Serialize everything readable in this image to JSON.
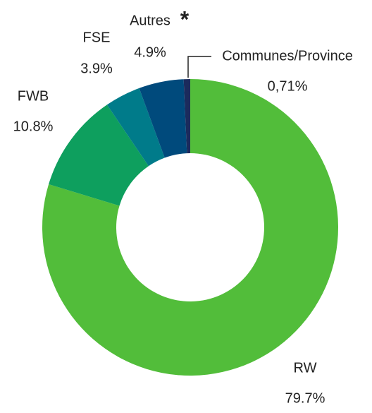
{
  "chart_data": {
    "type": "donut",
    "categories": [
      "RW",
      "FWB",
      "FSE",
      "Autres",
      "Communes/Province"
    ],
    "values": [
      79.7,
      10.8,
      3.9,
      4.9,
      0.71
    ],
    "value_labels": [
      "79.7%",
      "10.8%",
      "3.9%",
      "4.9%",
      "0,71%"
    ],
    "colors": [
      "#52bd3a",
      "#0e9f5e",
      "#007b8a",
      "#004a7c",
      "#1b2b5c"
    ],
    "marker": "*"
  }
}
